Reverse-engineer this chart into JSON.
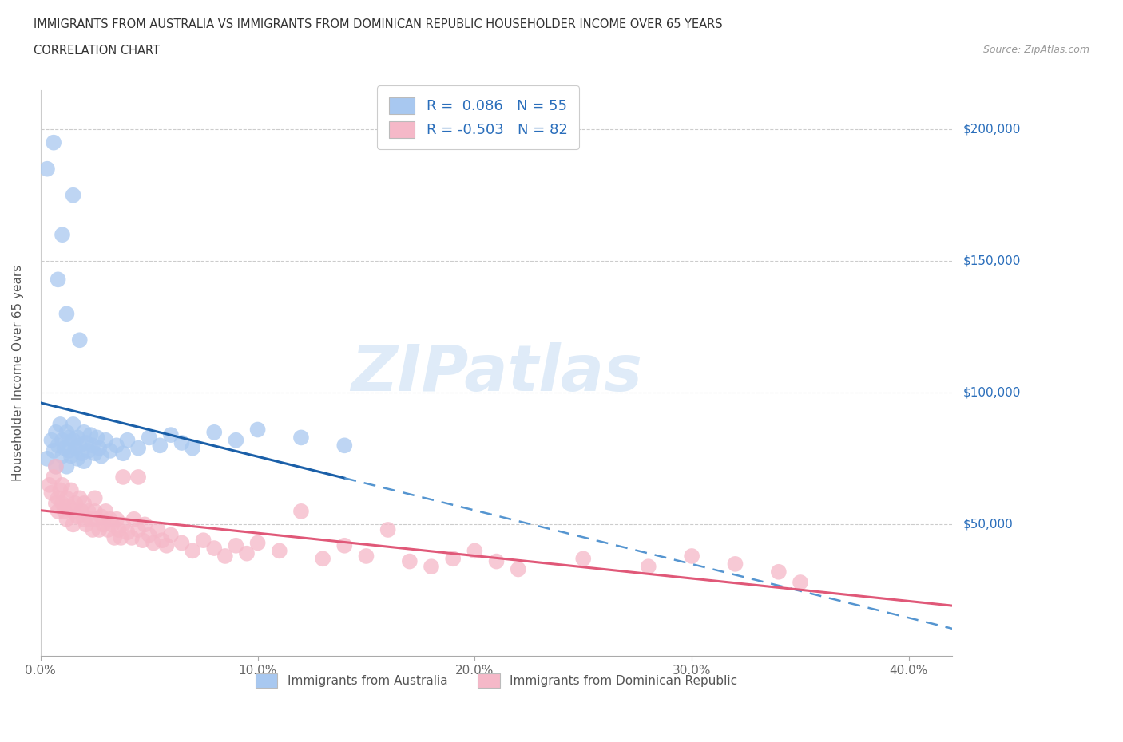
{
  "title_line1": "IMMIGRANTS FROM AUSTRALIA VS IMMIGRANTS FROM DOMINICAN REPUBLIC HOUSEHOLDER INCOME OVER 65 YEARS",
  "title_line2": "CORRELATION CHART",
  "source_text": "Source: ZipAtlas.com",
  "ylabel": "Householder Income Over 65 years",
  "xlim": [
    0.0,
    0.42
  ],
  "ylim": [
    0,
    215000
  ],
  "ytick_labels": [
    "$50,000",
    "$100,000",
    "$150,000",
    "$200,000"
  ],
  "ytick_values": [
    50000,
    100000,
    150000,
    200000
  ],
  "xtick_labels": [
    "0.0%",
    "10.0%",
    "20.0%",
    "30.0%",
    "40.0%"
  ],
  "xtick_values": [
    0.0,
    0.1,
    0.2,
    0.3,
    0.4
  ],
  "australia_color": "#a8c8f0",
  "dominican_color": "#f5b8c8",
  "australia_line_color": "#1a5fa8",
  "australia_dash_color": "#5595d0",
  "dominican_line_color": "#e05878",
  "R_australia": 0.086,
  "N_australia": 55,
  "R_dominican": -0.503,
  "N_dominican": 82,
  "watermark": "ZIPatlas",
  "legend_label_australia": "Immigrants from Australia",
  "legend_label_dominican": "Immigrants from Dominican Republic",
  "australia_scatter": [
    [
      0.003,
      75000
    ],
    [
      0.005,
      82000
    ],
    [
      0.006,
      78000
    ],
    [
      0.007,
      85000
    ],
    [
      0.007,
      72000
    ],
    [
      0.008,
      80000
    ],
    [
      0.009,
      88000
    ],
    [
      0.01,
      76000
    ],
    [
      0.01,
      82000
    ],
    [
      0.011,
      79000
    ],
    [
      0.012,
      85000
    ],
    [
      0.012,
      72000
    ],
    [
      0.013,
      78000
    ],
    [
      0.013,
      83000
    ],
    [
      0.014,
      76000
    ],
    [
      0.015,
      82000
    ],
    [
      0.015,
      88000
    ],
    [
      0.016,
      79000
    ],
    [
      0.017,
      75000
    ],
    [
      0.017,
      83000
    ],
    [
      0.018,
      80000
    ],
    [
      0.019,
      77000
    ],
    [
      0.02,
      85000
    ],
    [
      0.02,
      74000
    ],
    [
      0.021,
      81000
    ],
    [
      0.022,
      78000
    ],
    [
      0.023,
      84000
    ],
    [
      0.024,
      80000
    ],
    [
      0.025,
      77000
    ],
    [
      0.026,
      83000
    ],
    [
      0.027,
      79000
    ],
    [
      0.028,
      76000
    ],
    [
      0.03,
      82000
    ],
    [
      0.032,
      78000
    ],
    [
      0.035,
      80000
    ],
    [
      0.038,
      77000
    ],
    [
      0.04,
      82000
    ],
    [
      0.045,
      79000
    ],
    [
      0.05,
      83000
    ],
    [
      0.055,
      80000
    ],
    [
      0.06,
      84000
    ],
    [
      0.065,
      81000
    ],
    [
      0.07,
      79000
    ],
    [
      0.08,
      85000
    ],
    [
      0.09,
      82000
    ],
    [
      0.1,
      86000
    ],
    [
      0.12,
      83000
    ],
    [
      0.14,
      80000
    ],
    [
      0.008,
      143000
    ],
    [
      0.01,
      160000
    ],
    [
      0.012,
      130000
    ],
    [
      0.015,
      175000
    ],
    [
      0.018,
      120000
    ],
    [
      0.003,
      185000
    ],
    [
      0.006,
      195000
    ]
  ],
  "dominican_scatter": [
    [
      0.004,
      65000
    ],
    [
      0.005,
      62000
    ],
    [
      0.006,
      68000
    ],
    [
      0.007,
      58000
    ],
    [
      0.007,
      72000
    ],
    [
      0.008,
      60000
    ],
    [
      0.008,
      55000
    ],
    [
      0.009,
      63000
    ],
    [
      0.01,
      58000
    ],
    [
      0.01,
      65000
    ],
    [
      0.011,
      55000
    ],
    [
      0.012,
      60000
    ],
    [
      0.012,
      52000
    ],
    [
      0.013,
      57000
    ],
    [
      0.014,
      63000
    ],
    [
      0.015,
      55000
    ],
    [
      0.015,
      50000
    ],
    [
      0.016,
      58000
    ],
    [
      0.017,
      53000
    ],
    [
      0.018,
      60000
    ],
    [
      0.019,
      55000
    ],
    [
      0.02,
      52000
    ],
    [
      0.02,
      58000
    ],
    [
      0.021,
      50000
    ],
    [
      0.022,
      55000
    ],
    [
      0.023,
      52000
    ],
    [
      0.024,
      48000
    ],
    [
      0.025,
      55000
    ],
    [
      0.025,
      60000
    ],
    [
      0.026,
      52000
    ],
    [
      0.027,
      48000
    ],
    [
      0.028,
      53000
    ],
    [
      0.029,
      50000
    ],
    [
      0.03,
      55000
    ],
    [
      0.031,
      48000
    ],
    [
      0.032,
      52000
    ],
    [
      0.033,
      50000
    ],
    [
      0.034,
      45000
    ],
    [
      0.035,
      52000
    ],
    [
      0.036,
      48000
    ],
    [
      0.037,
      45000
    ],
    [
      0.038,
      50000
    ],
    [
      0.04,
      47000
    ],
    [
      0.042,
      45000
    ],
    [
      0.043,
      52000
    ],
    [
      0.045,
      48000
    ],
    [
      0.047,
      44000
    ],
    [
      0.048,
      50000
    ],
    [
      0.05,
      46000
    ],
    [
      0.052,
      43000
    ],
    [
      0.054,
      48000
    ],
    [
      0.056,
      44000
    ],
    [
      0.058,
      42000
    ],
    [
      0.06,
      46000
    ],
    [
      0.065,
      43000
    ],
    [
      0.07,
      40000
    ],
    [
      0.075,
      44000
    ],
    [
      0.08,
      41000
    ],
    [
      0.085,
      38000
    ],
    [
      0.09,
      42000
    ],
    [
      0.095,
      39000
    ],
    [
      0.1,
      43000
    ],
    [
      0.11,
      40000
    ],
    [
      0.12,
      55000
    ],
    [
      0.13,
      37000
    ],
    [
      0.14,
      42000
    ],
    [
      0.15,
      38000
    ],
    [
      0.16,
      48000
    ],
    [
      0.17,
      36000
    ],
    [
      0.18,
      34000
    ],
    [
      0.19,
      37000
    ],
    [
      0.2,
      40000
    ],
    [
      0.21,
      36000
    ],
    [
      0.22,
      33000
    ],
    [
      0.25,
      37000
    ],
    [
      0.28,
      34000
    ],
    [
      0.3,
      38000
    ],
    [
      0.32,
      35000
    ],
    [
      0.34,
      32000
    ],
    [
      0.35,
      28000
    ],
    [
      0.038,
      68000
    ],
    [
      0.045,
      68000
    ]
  ]
}
